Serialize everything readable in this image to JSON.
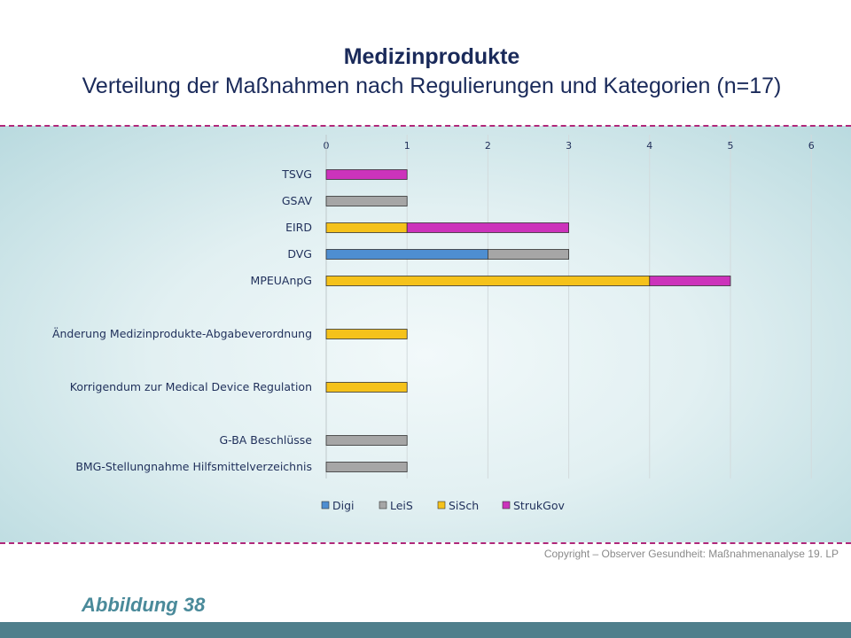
{
  "title": "Medizinprodukte",
  "subtitle": "Verteilung der Maßnahmen nach Regulierungen und Kategorien (n=17)",
  "copyright": "Copyright – Observer Gesundheit: Maßnahmenanalyse 19. LP",
  "figure_label": "Abbildung 38",
  "chart_data": {
    "type": "bar",
    "orientation": "horizontal",
    "stacked": true,
    "title": "Medizinprodukte",
    "subtitle": "Verteilung der Maßnahmen nach Regulierungen und Kategorien (n=17)",
    "xlim": [
      0,
      6
    ],
    "x_ticks": [
      0,
      1,
      2,
      3,
      4,
      5,
      6
    ],
    "x_axis_position": "top",
    "grid": "vertical",
    "legend_position": "bottom",
    "categories": [
      "TSVG",
      "GSAV",
      "EIRD",
      "DVG",
      "MPEUAnpG",
      "",
      "Änderung Medizinprodukte-Abgabeverordnung",
      "",
      "Korrigendum zur Medical Device Regulation",
      "",
      "G-BA Beschlüsse",
      "BMG-Stellungnahme Hilfsmittelverzeichnis"
    ],
    "series": [
      {
        "name": "Digi",
        "color": "#4e8ed1",
        "values": [
          0,
          0,
          0,
          2,
          0,
          null,
          0,
          null,
          0,
          null,
          0,
          0
        ]
      },
      {
        "name": "LeiS",
        "color": "#a6a6a6",
        "values": [
          0,
          1,
          0,
          1,
          0,
          null,
          0,
          null,
          0,
          null,
          1,
          1
        ]
      },
      {
        "name": "SiSch",
        "color": "#f5c21b",
        "values": [
          0,
          0,
          1,
          0,
          4,
          null,
          1,
          null,
          1,
          null,
          0,
          0
        ]
      },
      {
        "name": "StrukGov",
        "color": "#cc33bb",
        "values": [
          1,
          0,
          2,
          0,
          1,
          null,
          0,
          null,
          0,
          null,
          0,
          0
        ]
      }
    ]
  }
}
